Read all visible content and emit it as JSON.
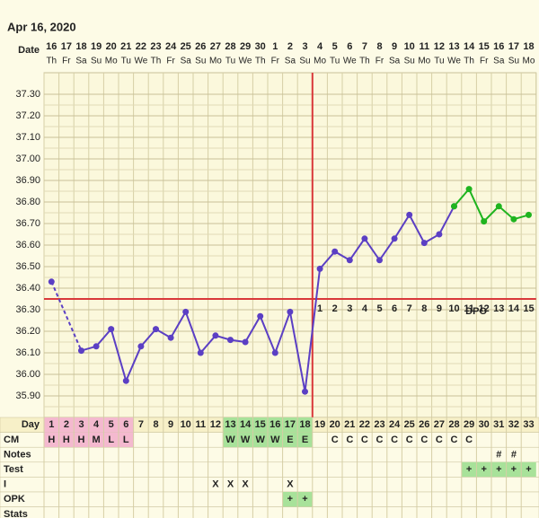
{
  "chart_data": {
    "type": "line",
    "title": "Apr 16, 2020",
    "date_label": "Date",
    "dates": [
      16,
      17,
      18,
      19,
      20,
      21,
      22,
      23,
      24,
      25,
      26,
      27,
      28,
      29,
      30,
      1,
      2,
      3,
      4,
      5,
      6,
      7,
      8,
      9,
      10,
      11,
      12,
      13,
      14,
      15,
      16,
      17,
      18
    ],
    "weekdays": [
      "Th",
      "Fr",
      "Sa",
      "Su",
      "Mo",
      "Tu",
      "We",
      "Th",
      "Fr",
      "Sa",
      "Su",
      "Mo",
      "Tu",
      "We",
      "Th",
      "Fr",
      "Sa",
      "Su",
      "Mo",
      "Tu",
      "We",
      "Th",
      "Fr",
      "Sa",
      "Su",
      "Mo",
      "Tu",
      "We",
      "Th",
      "Fr",
      "Sa",
      "Su",
      "Mo"
    ],
    "ylim": [
      35.8,
      37.4
    ],
    "yticks": [
      {
        "value": 37.3,
        "label": "37.30"
      },
      {
        "value": 37.2,
        "label": "37.20"
      },
      {
        "value": 37.1,
        "label": "37.10"
      },
      {
        "value": 37.0,
        "label": "37.00"
      },
      {
        "value": 36.9,
        "label": "36.90"
      },
      {
        "value": 36.8,
        "label": "36.80"
      },
      {
        "value": 36.7,
        "label": "36.70"
      },
      {
        "value": 36.6,
        "label": "36.60"
      },
      {
        "value": 36.5,
        "label": "36.50"
      },
      {
        "value": 36.4,
        "label": "36.40"
      },
      {
        "value": 36.3,
        "label": "36.30"
      },
      {
        "value": 36.2,
        "label": "36.20"
      },
      {
        "value": 36.1,
        "label": "36.10"
      },
      {
        "value": 36.0,
        "label": "36.00"
      },
      {
        "value": 35.9,
        "label": "35.90"
      }
    ],
    "grid": true,
    "series": [
      {
        "color": "#5b3fc4",
        "values": [
          36.43,
          null,
          36.11,
          36.13,
          36.21,
          35.97,
          36.13,
          36.21,
          36.17,
          36.29,
          36.1,
          36.18,
          36.16,
          36.15,
          36.27,
          36.1,
          36.29,
          35.92,
          36.49,
          36.57,
          36.53,
          36.63,
          36.53,
          36.63,
          36.74,
          36.61,
          36.65,
          36.78,
          null,
          null,
          null,
          null,
          null
        ]
      },
      {
        "color": "#1fb41f",
        "values": [
          null,
          null,
          null,
          null,
          null,
          null,
          null,
          null,
          null,
          null,
          null,
          null,
          null,
          null,
          null,
          null,
          null,
          null,
          null,
          null,
          null,
          null,
          null,
          null,
          null,
          null,
          null,
          36.78,
          36.86,
          36.71,
          36.78,
          36.72,
          36.74
        ]
      }
    ],
    "coverline": 36.35,
    "ovulation_day": 18,
    "line_color": "#d9383a",
    "dpo": [
      1,
      2,
      3,
      4,
      5,
      6,
      7,
      8,
      9,
      10,
      11,
      12,
      13,
      14,
      15
    ],
    "dpo_label": "DPO",
    "rows": [
      {
        "label": "Day",
        "cells": [
          1,
          2,
          3,
          4,
          5,
          6,
          7,
          8,
          9,
          10,
          11,
          12,
          13,
          14,
          15,
          16,
          17,
          18,
          19,
          20,
          21,
          22,
          23,
          24,
          25,
          26,
          27,
          28,
          29,
          30,
          31,
          32,
          33
        ]
      },
      {
        "label": "CM",
        "cells": [
          "H",
          "H",
          "H",
          "M",
          "L",
          "L",
          null,
          null,
          null,
          null,
          null,
          null,
          "W",
          "W",
          "W",
          "W",
          "E",
          "E",
          null,
          "C",
          "C",
          "C",
          "C",
          "C",
          "C",
          "C",
          "C",
          "C",
          "C",
          null,
          null,
          null,
          null
        ]
      },
      {
        "label": "Notes",
        "cells": [
          null,
          null,
          null,
          null,
          null,
          null,
          null,
          null,
          null,
          null,
          null,
          null,
          null,
          null,
          null,
          null,
          null,
          null,
          null,
          null,
          null,
          null,
          null,
          null,
          null,
          null,
          null,
          null,
          null,
          null,
          "#",
          "#",
          null
        ]
      },
      {
        "label": "Test",
        "cells": [
          null,
          null,
          null,
          null,
          null,
          null,
          null,
          null,
          null,
          null,
          null,
          null,
          null,
          null,
          null,
          null,
          null,
          null,
          null,
          null,
          null,
          null,
          null,
          null,
          null,
          null,
          null,
          null,
          "+",
          "+",
          "+",
          "+",
          "+"
        ]
      },
      {
        "label": "I",
        "cells": [
          null,
          null,
          null,
          null,
          null,
          null,
          null,
          null,
          null,
          null,
          null,
          "X",
          "X",
          "X",
          null,
          null,
          "X",
          null,
          null,
          null,
          null,
          null,
          null,
          null,
          null,
          null,
          null,
          null,
          null,
          null,
          null,
          null,
          null
        ]
      },
      {
        "label": "OPK",
        "cells": [
          null,
          null,
          null,
          null,
          null,
          null,
          null,
          null,
          null,
          null,
          null,
          null,
          null,
          null,
          null,
          null,
          "+",
          "+",
          null,
          null,
          null,
          null,
          null,
          null,
          null,
          null,
          null,
          null,
          null,
          null,
          null,
          null,
          null
        ]
      },
      {
        "label": "Stats",
        "cells": [
          null,
          null,
          null,
          null,
          null,
          null,
          null,
          null,
          null,
          null,
          null,
          null,
          null,
          null,
          null,
          null,
          null,
          null,
          null,
          null,
          null,
          null,
          null,
          null,
          null,
          null,
          null,
          null,
          null,
          null,
          null,
          null,
          null
        ]
      }
    ]
  }
}
